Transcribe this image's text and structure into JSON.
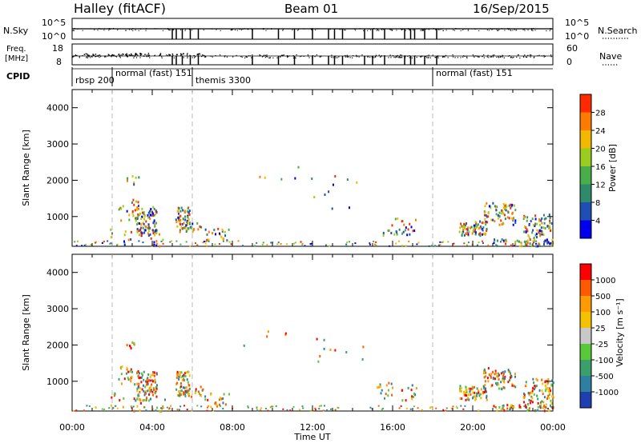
{
  "header": {
    "station": "Halley (fitACF)",
    "beam": "Beam 01",
    "date": "16/Sep/2015"
  },
  "top_panels": {
    "nsky_label": "N.Sky",
    "nsearch_label": "N.Search",
    "nsky_ticks": [
      "10^5",
      "10^0"
    ],
    "nsearch_ticks": [
      "10^5",
      "10^0"
    ],
    "freq_label_1": "Freq.",
    "freq_label_2": "[MHz]",
    "freq_ticks": [
      "18",
      "8"
    ],
    "nave_label": "Nave",
    "nave_ticks": [
      "60",
      "0"
    ],
    "cpid_label": "CPID",
    "cpid_entries": [
      {
        "label": "rbsp 200",
        "start_hour": 0.0
      },
      {
        "label": "normal (fast) 151",
        "start_hour": 2.0
      },
      {
        "label": "themis 3300",
        "start_hour": 6.0
      },
      {
        "label": "normal (fast) 151",
        "start_hour": 18.0
      }
    ],
    "dropout_hours": [
      5.0,
      5.2,
      5.5,
      5.9,
      6.3,
      9.0,
      10.3,
      11.1,
      12.0,
      12.8,
      13.1,
      13.5,
      14.6,
      15.0,
      15.6,
      16.6,
      16.9,
      17.1,
      17.6,
      18.2
    ]
  },
  "chart_data": [
    {
      "type": "heatmap",
      "name": "power",
      "xlabel": "",
      "ylabel": "Slant Range [km]",
      "xlim": [
        0,
        24
      ],
      "ylim": [
        180,
        4500
      ],
      "yticks": [
        1000,
        2000,
        3000,
        4000
      ],
      "colorbar_label": "Power [dB]",
      "colorbar_ticks": [
        "4",
        "8",
        "12",
        "16",
        "20",
        "24",
        "28"
      ],
      "colorbar_range": [
        0,
        32
      ],
      "colors": [
        "#0000ee",
        "#1f4fb4",
        "#2f8a6a",
        "#49ad4b",
        "#9ccc1f",
        "#f2b800",
        "#ff7a00",
        "#ff2a00"
      ]
    },
    {
      "type": "heatmap",
      "name": "velocity",
      "xlabel": "Time UT",
      "ylabel": "Slant Range [km]",
      "xlim": [
        0,
        24
      ],
      "ylim": [
        180,
        4500
      ],
      "yticks": [
        1000,
        2000,
        3000,
        4000
      ],
      "xticks": [
        "00:00",
        "04:00",
        "08:00",
        "12:00",
        "16:00",
        "20:00",
        "00:00"
      ],
      "colorbar_label": "Velocity [m s⁻¹]",
      "colorbar_ticks": [
        "1000",
        "500",
        "100",
        "25",
        "-25",
        "-100",
        "-500",
        "-1000"
      ],
      "colors": [
        "#1f3fb0",
        "#2f7fa0",
        "#3a9f6a",
        "#5ac83a",
        "#c8c8c8",
        "#f2c200",
        "#ff9a00",
        "#ff5a00",
        "#ff0000"
      ]
    }
  ]
}
